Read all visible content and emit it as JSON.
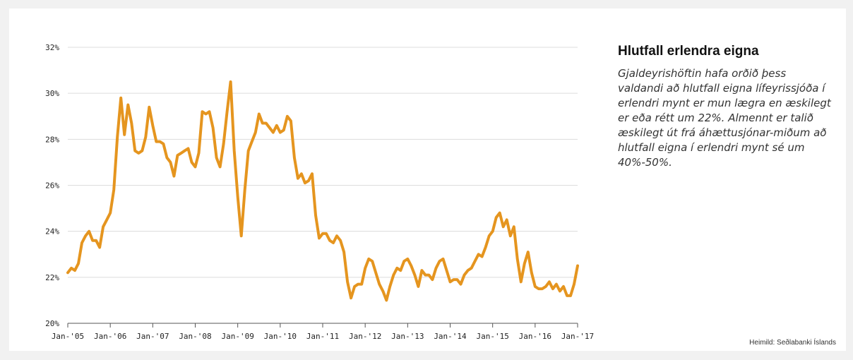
{
  "chart_data": {
    "type": "line",
    "title": "Hlutfall erlendra eigna",
    "description": "Gjaldeyrishöftin hafa orðið þess valdandi að hlutfall eigna lífeyrissjóða í erlendri mynt er mun lægra en æskilegt er eða rétt um 22%. Almennt er talið æskilegt út frá áhættusjónar-miðum að hlutfall eigna í erlendri mynt sé um 40%-50%.",
    "source": "Heimild: Seðlabanki Íslands",
    "xlabel": "",
    "ylabel": "",
    "ylim": [
      20,
      32
    ],
    "y_ticks": [
      20,
      22,
      24,
      26,
      28,
      30,
      32
    ],
    "y_tick_labels": [
      "20%",
      "22%",
      "24%",
      "26%",
      "28%",
      "30%",
      "32%"
    ],
    "x_range": [
      2005.0,
      2017.0
    ],
    "x_ticks": [
      2005,
      2006,
      2007,
      2008,
      2009,
      2010,
      2011,
      2012,
      2013,
      2014,
      2015,
      2016,
      2017
    ],
    "x_tick_labels": [
      "Jan-'05",
      "Jan-'06",
      "Jan-'07",
      "Jan-'08",
      "Jan-'09",
      "Jan-'10",
      "Jan-'11",
      "Jan-'12",
      "Jan-'13",
      "Jan-'14",
      "Jan-'15",
      "Jan-'16",
      "Jan-'17"
    ],
    "grid": true,
    "line_color": "#e5951f",
    "x": [
      2005.0,
      2005.083,
      2005.167,
      2005.25,
      2005.333,
      2005.417,
      2005.5,
      2005.583,
      2005.667,
      2005.75,
      2005.833,
      2005.917,
      2006.0,
      2006.083,
      2006.167,
      2006.25,
      2006.333,
      2006.417,
      2006.5,
      2006.583,
      2006.667,
      2006.75,
      2006.833,
      2006.917,
      2007.0,
      2007.083,
      2007.167,
      2007.25,
      2007.333,
      2007.417,
      2007.5,
      2007.583,
      2007.667,
      2007.75,
      2007.833,
      2007.917,
      2008.0,
      2008.083,
      2008.167,
      2008.25,
      2008.333,
      2008.417,
      2008.5,
      2008.583,
      2008.667,
      2008.75,
      2008.833,
      2008.917,
      2009.0,
      2009.083,
      2009.167,
      2009.25,
      2009.333,
      2009.417,
      2009.5,
      2009.583,
      2009.667,
      2009.75,
      2009.833,
      2009.917,
      2010.0,
      2010.083,
      2010.167,
      2010.25,
      2010.333,
      2010.417,
      2010.5,
      2010.583,
      2010.667,
      2010.75,
      2010.833,
      2010.917,
      2011.0,
      2011.083,
      2011.167,
      2011.25,
      2011.333,
      2011.417,
      2011.5,
      2011.583,
      2011.667,
      2011.75,
      2011.833,
      2011.917,
      2012.0,
      2012.083,
      2012.167,
      2012.25,
      2012.333,
      2012.417,
      2012.5,
      2012.583,
      2012.667,
      2012.75,
      2012.833,
      2012.917,
      2013.0,
      2013.083,
      2013.167,
      2013.25,
      2013.333,
      2013.417,
      2013.5,
      2013.583,
      2013.667,
      2013.75,
      2013.833,
      2013.917,
      2014.0,
      2014.083,
      2014.167,
      2014.25,
      2014.333,
      2014.417,
      2014.5,
      2014.583,
      2014.667,
      2014.75,
      2014.833,
      2014.917,
      2015.0,
      2015.083,
      2015.167,
      2015.25,
      2015.333,
      2015.417,
      2015.5,
      2015.583,
      2015.667,
      2015.75,
      2015.833,
      2015.917,
      2016.0,
      2016.083,
      2016.167,
      2016.25,
      2016.333,
      2016.417,
      2016.5,
      2016.583,
      2016.667,
      2016.75,
      2016.833,
      2016.917,
      2017.0
    ],
    "y": [
      22.2,
      22.4,
      22.3,
      22.6,
      23.5,
      23.8,
      24.0,
      23.6,
      23.6,
      23.3,
      24.2,
      24.5,
      24.8,
      25.8,
      28.1,
      29.8,
      28.2,
      29.5,
      28.7,
      27.5,
      27.4,
      27.5,
      28.1,
      29.4,
      28.6,
      27.9,
      27.9,
      27.8,
      27.2,
      27.0,
      26.4,
      27.3,
      27.4,
      27.5,
      27.6,
      27.0,
      26.8,
      27.4,
      29.2,
      29.1,
      29.2,
      28.5,
      27.2,
      26.8,
      27.8,
      29.2,
      30.5,
      27.5,
      25.5,
      23.8,
      25.8,
      27.5,
      27.9,
      28.3,
      29.1,
      28.7,
      28.7,
      28.5,
      28.3,
      28.6,
      28.3,
      28.4,
      29.0,
      28.8,
      27.2,
      26.3,
      26.5,
      26.1,
      26.2,
      26.5,
      24.7,
      23.7,
      23.9,
      23.9,
      23.6,
      23.5,
      23.8,
      23.6,
      23.1,
      21.8,
      21.1,
      21.6,
      21.7,
      21.7,
      22.4,
      22.8,
      22.7,
      22.2,
      21.7,
      21.4,
      21.0,
      21.6,
      22.1,
      22.4,
      22.3,
      22.7,
      22.8,
      22.5,
      22.1,
      21.6,
      22.3,
      22.1,
      22.1,
      21.9,
      22.4,
      22.7,
      22.8,
      22.3,
      21.8,
      21.9,
      21.9,
      21.7,
      22.1,
      22.3,
      22.4,
      22.7,
      23.0,
      22.9,
      23.3,
      23.8,
      24.0,
      24.6,
      24.8,
      24.2,
      24.5,
      23.8,
      24.2,
      22.8,
      21.8,
      22.6,
      23.1,
      22.2,
      21.6,
      21.5,
      21.5,
      21.6,
      21.8,
      21.5,
      21.7,
      21.4,
      21.6,
      21.2,
      21.2,
      21.7,
      22.5
    ]
  }
}
